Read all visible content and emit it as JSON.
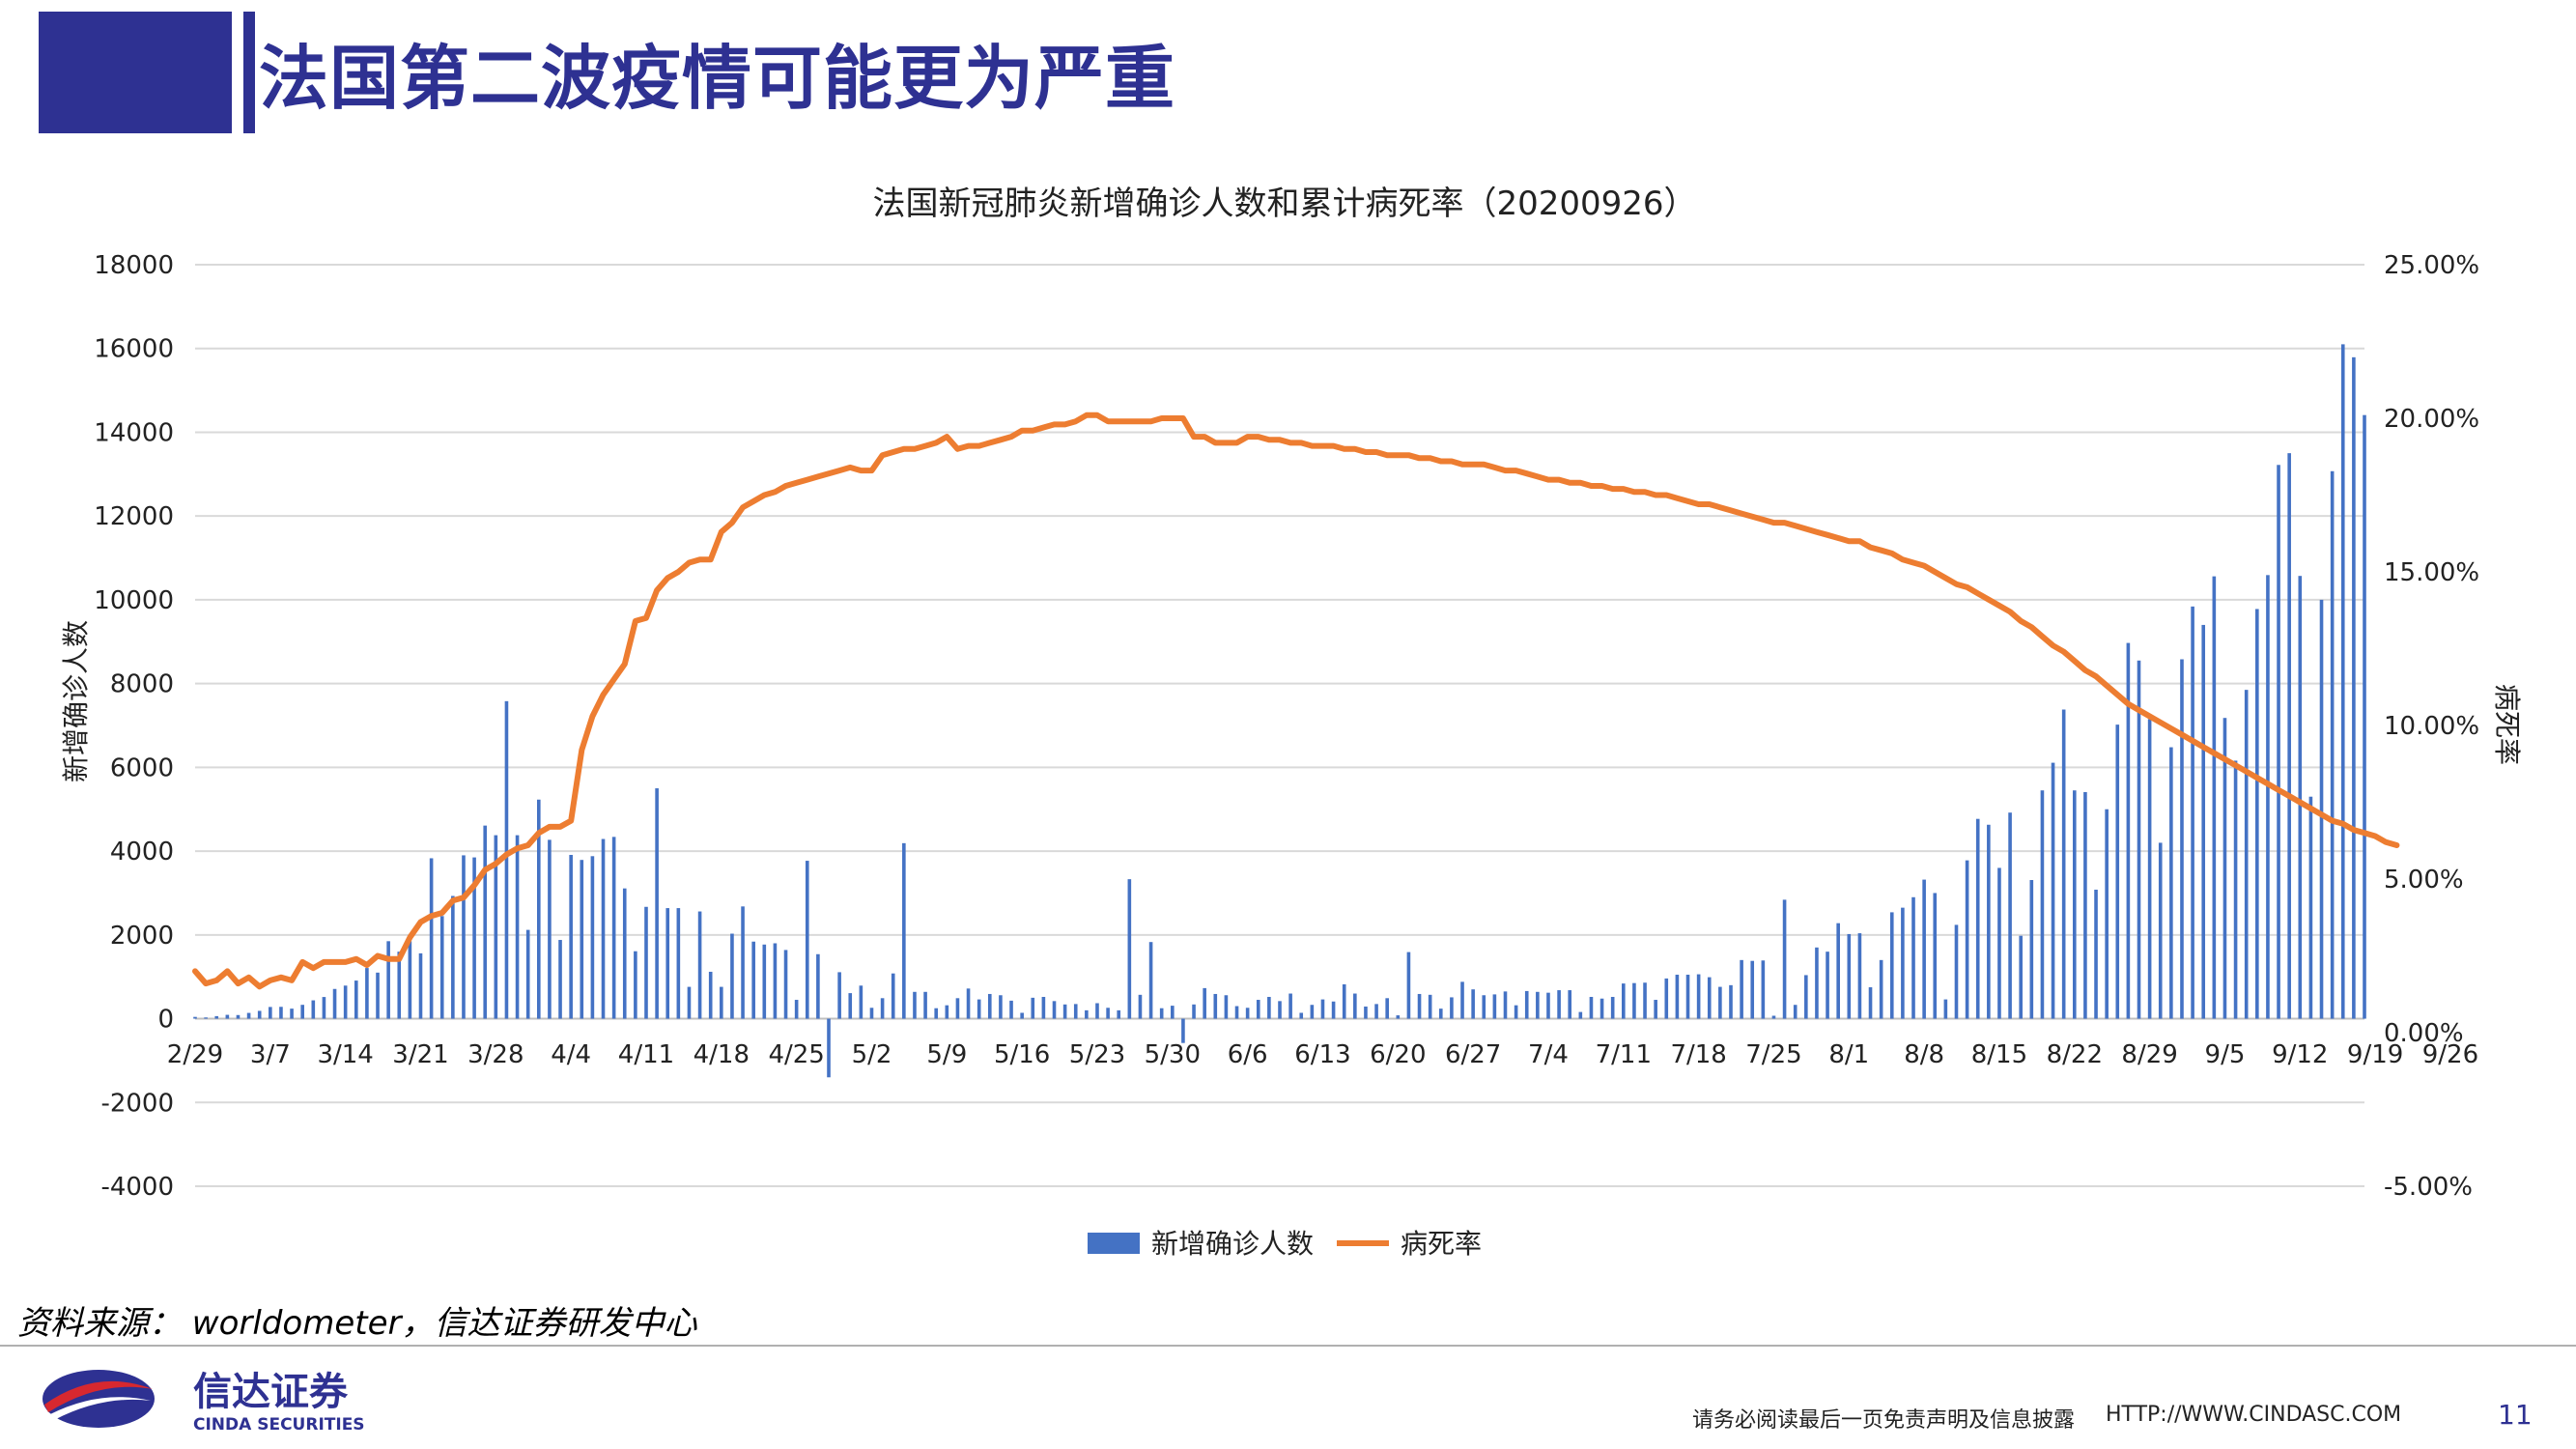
{
  "header": {
    "title": "法国第二波疫情可能更为严重"
  },
  "colors": {
    "brand": "#2e3192",
    "bars": "#4472c4",
    "line": "#ed7d31",
    "grid": "#d9d9d9"
  },
  "chart_data": {
    "type": "bar+line",
    "title": "法国新冠肺炎新增确诊人数和累计病死率（20200926）",
    "ylabel": "新增确诊人数",
    "y2label": "病死率",
    "ylim": [
      -4000,
      18000
    ],
    "yticks": [
      "18000",
      "16000",
      "14000",
      "12000",
      "10000",
      "8000",
      "6000",
      "4000",
      "2000",
      "0",
      "-2000",
      "-4000"
    ],
    "y2lim": [
      -5,
      25
    ],
    "y2ticks": [
      "25.00%",
      "20.00%",
      "15.00%",
      "10.00%",
      "5.00%",
      "0.00%",
      "-5.00%"
    ],
    "x_tick_labels": [
      "2/29",
      "3/7",
      "3/14",
      "3/21",
      "3/28",
      "4/4",
      "4/11",
      "4/18",
      "4/25",
      "5/2",
      "5/9",
      "5/16",
      "5/23",
      "5/30",
      "6/6",
      "6/13",
      "6/20",
      "6/27",
      "7/4",
      "7/11",
      "7/18",
      "7/25",
      "8/1",
      "8/8",
      "8/15",
      "8/22",
      "8/29",
      "9/5",
      "9/12",
      "9/19",
      "9/26"
    ],
    "grid": true,
    "legend_position": "bottom",
    "series": [
      {
        "name": "新增确诊人数",
        "type": "bar",
        "values": [
          43,
          30,
          61,
          92,
          87,
          138,
          187,
          280,
          283,
          240,
          331,
          438,
          518,
          710,
          790,
          910,
          1210,
          1100,
          1850,
          1600,
          1850,
          1560,
          3830,
          2450,
          2930,
          3900,
          3850,
          4610,
          4380,
          7580,
          4380,
          2120,
          5230,
          4270,
          1880,
          3910,
          3790,
          3880,
          4290,
          4340,
          3110,
          1610,
          2670,
          5500,
          2640,
          2640,
          760,
          2560,
          1120,
          760,
          2030,
          2680,
          1840,
          1770,
          1800,
          1640,
          450,
          3770,
          1540,
          -1400,
          1110,
          610,
          790,
          260,
          490,
          1080,
          4190,
          640,
          640,
          250,
          320,
          490,
          720,
          460,
          590,
          560,
          430,
          140,
          500,
          520,
          420,
          340,
          350,
          200,
          370,
          260,
          200,
          3330,
          570,
          1830,
          250,
          310,
          -580,
          340,
          730,
          590,
          560,
          300,
          260,
          450,
          520,
          420,
          600,
          140,
          330,
          460,
          410,
          820,
          600,
          290,
          350,
          490,
          80,
          1590,
          590,
          570,
          240,
          510,
          880,
          700,
          560,
          580,
          650,
          320,
          660,
          640,
          620,
          680,
          680,
          160,
          520,
          480,
          520,
          840,
          850,
          860,
          450,
          960,
          1050,
          1050,
          1060,
          990,
          760,
          800,
          1400,
          1380,
          1390,
          70,
          2840,
          330,
          1040,
          1700,
          1600,
          2280,
          2020,
          2040,
          750,
          1400,
          2540,
          2650,
          2900,
          3320,
          3000,
          460,
          2240,
          3780,
          4770,
          4630,
          3600,
          4920,
          1980,
          3310,
          5450,
          6110,
          7380,
          5450,
          5410,
          3080,
          5000,
          7020,
          8970,
          8550,
          7150,
          4200,
          6480,
          8580,
          9840,
          9400,
          10560,
          7180,
          6160,
          7850,
          9780,
          10590,
          13220,
          13500,
          10570,
          5300,
          10000,
          13070,
          16100,
          15790,
          14410
        ]
      },
      {
        "name": "病死率",
        "type": "line",
        "unit": "%",
        "values": [
          2.0,
          1.6,
          1.7,
          2.0,
          1.6,
          1.8,
          1.5,
          1.7,
          1.8,
          1.7,
          2.3,
          2.1,
          2.3,
          2.3,
          2.3,
          2.4,
          2.2,
          2.5,
          2.4,
          2.4,
          3.1,
          3.6,
          3.8,
          3.9,
          4.3,
          4.4,
          4.8,
          5.3,
          5.5,
          5.8,
          6.0,
          6.1,
          6.5,
          6.7,
          6.7,
          6.9,
          9.2,
          10.3,
          11.0,
          11.5,
          12.0,
          13.4,
          13.5,
          14.4,
          14.8,
          15.0,
          15.3,
          15.4,
          15.4,
          16.3,
          16.6,
          17.1,
          17.3,
          17.5,
          17.6,
          17.8,
          17.9,
          18.0,
          18.1,
          18.2,
          18.3,
          18.4,
          18.3,
          18.3,
          18.8,
          18.9,
          19.0,
          19.0,
          19.1,
          19.2,
          19.4,
          19.0,
          19.1,
          19.1,
          19.2,
          19.3,
          19.4,
          19.6,
          19.6,
          19.7,
          19.8,
          19.8,
          19.9,
          20.1,
          20.1,
          19.9,
          19.9,
          19.9,
          19.9,
          19.9,
          20.0,
          20.0,
          20.0,
          19.4,
          19.4,
          19.2,
          19.2,
          19.2,
          19.4,
          19.4,
          19.3,
          19.3,
          19.2,
          19.2,
          19.1,
          19.1,
          19.1,
          19.0,
          19.0,
          18.9,
          18.9,
          18.8,
          18.8,
          18.8,
          18.7,
          18.7,
          18.6,
          18.6,
          18.5,
          18.5,
          18.5,
          18.4,
          18.3,
          18.3,
          18.2,
          18.1,
          18.0,
          18.0,
          17.9,
          17.9,
          17.8,
          17.8,
          17.7,
          17.7,
          17.6,
          17.6,
          17.5,
          17.5,
          17.4,
          17.3,
          17.2,
          17.2,
          17.1,
          17.0,
          16.9,
          16.8,
          16.7,
          16.6,
          16.6,
          16.5,
          16.4,
          16.3,
          16.2,
          16.1,
          16.0,
          16.0,
          15.8,
          15.7,
          15.6,
          15.4,
          15.3,
          15.2,
          15.0,
          14.8,
          14.6,
          14.5,
          14.3,
          14.1,
          13.9,
          13.7,
          13.4,
          13.2,
          12.9,
          12.6,
          12.4,
          12.1,
          11.8,
          11.6,
          11.3,
          11.0,
          10.7,
          10.5,
          10.3,
          10.1,
          9.9,
          9.7,
          9.5,
          9.3,
          9.1,
          8.9,
          8.7,
          8.5,
          8.3,
          8.1,
          7.9,
          7.7,
          7.5,
          7.3,
          7.1,
          6.9,
          6.8,
          6.6,
          6.5,
          6.4,
          6.2,
          6.1
        ]
      }
    ]
  },
  "source": {
    "text": "资料来源：  worldometer，信达证券研发中心"
  },
  "footer": {
    "logo_cn": "信达证券",
    "logo_en": "CINDA SECURITIES",
    "disclaimer": "请务必阅读最后一页免责声明及信息披露",
    "url": "HTTP://WWW.CINDASC.COM",
    "page": "11"
  }
}
